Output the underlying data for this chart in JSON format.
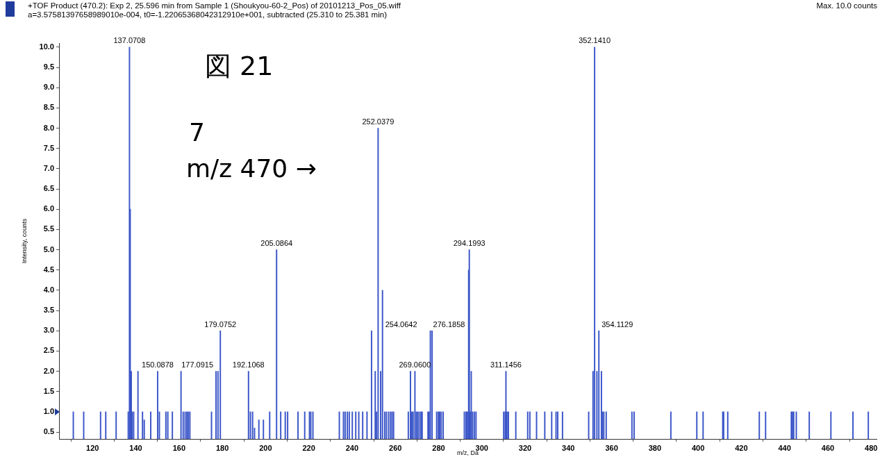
{
  "chart_data": {
    "type": "bar",
    "title": "+TOF Product (470.2): Exp 2, 25.596 min from Sample 1 (Shoukyou-60-2_Pos) of 20101213_Pos_05.wiff",
    "subtitle": "a=3.57581397658989010e-004, t0=-1.22065368042312910e+001, subtracted (25.310 to 25.381 min)",
    "xlabel": "m/z, Da",
    "ylabel": "Intensity, counts",
    "color": "#3a55c8",
    "x": [
      111.1,
      115.9,
      123.7,
      126.1,
      130.9,
      136.5,
      137.0708,
      137.4,
      137.9,
      138.3,
      139.0,
      141.0,
      143.1,
      143.9,
      146.9,
      150.0878,
      150.9,
      153.9,
      154.8,
      156.9,
      160.9,
      161.9,
      162.8,
      163.6,
      164.3,
      165.0,
      175.0,
      177.0915,
      178.0,
      179.0752,
      192.1068,
      193.0,
      194.0,
      194.9,
      196.9,
      199.0,
      201.9,
      205.0864,
      207.0,
      209.1,
      210.2,
      215.0,
      218.1,
      220.3,
      220.9,
      221.9,
      234.1,
      236.0,
      236.8,
      237.8,
      238.7,
      240.1,
      241.7,
      243.1,
      244.9,
      246.9,
      249.0,
      250.7,
      251.3,
      252.0379,
      253.2,
      254.0642,
      255.1,
      255.9,
      256.9,
      257.8,
      258.5,
      259.2,
      266.0,
      267.0,
      267.6,
      268.2,
      269.06,
      269.7,
      270.3,
      271.0,
      271.8,
      272.4,
      275.1,
      275.6,
      276.1858,
      277.0,
      279.1,
      279.9,
      280.5,
      281.2,
      282.1,
      291.9,
      292.7,
      293.3,
      293.9,
      294.1993,
      294.6,
      295.1,
      295.7,
      296.5,
      297.3,
      310.1,
      310.8,
      311.1456,
      311.6,
      312.3,
      315.7,
      321.2,
      322.2,
      325.3,
      329.1,
      332.3,
      334.3,
      335.1,
      337.3,
      349.4,
      351.4,
      352.141,
      353.2,
      354.1129,
      355.3,
      355.8,
      356.4,
      357.5,
      369.4,
      370.4,
      387.4,
      399.4,
      402.3,
      411.4,
      411.8,
      413.7,
      428.3,
      431.2,
      443.1,
      443.6,
      444.2,
      445.4,
      451.4,
      461.4,
      471.6,
      478.7
    ],
    "values": [
      1,
      1,
      1,
      1,
      1,
      1,
      10,
      6,
      2,
      1,
      1,
      2,
      1,
      0.8,
      1,
      2,
      1,
      1,
      1,
      1,
      2,
      1,
      1,
      1,
      1,
      1,
      1,
      2,
      2,
      3,
      2,
      1,
      1,
      0.6,
      0.8,
      0.8,
      1,
      5,
      1,
      1,
      1,
      1,
      1,
      1,
      1,
      1,
      1,
      1,
      1,
      1,
      1,
      1,
      1,
      1,
      1,
      1,
      3,
      2,
      1,
      8,
      2,
      4,
      1,
      1,
      1,
      1,
      1,
      1,
      1,
      2,
      1,
      1,
      2,
      1,
      1,
      1,
      1,
      1,
      1,
      1,
      3,
      3,
      1,
      1,
      1,
      1,
      1,
      1,
      1,
      1,
      4.5,
      5,
      1,
      2,
      1,
      1,
      1,
      1,
      1,
      2,
      1,
      1,
      1,
      1,
      1,
      1,
      1,
      1,
      1,
      1,
      1,
      1,
      2,
      10,
      2,
      3,
      2,
      1,
      1,
      1,
      1,
      1,
      1,
      1,
      1,
      1,
      1,
      1,
      1,
      1,
      1,
      1,
      1,
      1,
      1,
      1,
      1,
      1
    ],
    "xlim": [
      104.5,
      482.5
    ],
    "xticks": [
      120,
      140,
      160,
      180,
      200,
      220,
      240,
      260,
      280,
      300,
      320,
      340,
      360,
      380,
      400,
      420,
      440,
      460,
      480
    ],
    "ylim": [
      0.33,
      10.1
    ],
    "yticks": [
      {
        "value": 0.5,
        "label": "0.5"
      },
      {
        "value": 1,
        "label": "1.0"
      },
      {
        "value": 1.5,
        "label": "1.5"
      },
      {
        "value": 2,
        "label": "2.0"
      },
      {
        "value": 2.5,
        "label": "2.5"
      },
      {
        "value": 3,
        "label": "3.0"
      },
      {
        "value": 3.5,
        "label": "3.5"
      },
      {
        "value": 4,
        "label": "4.0"
      },
      {
        "value": 4.5,
        "label": "4.5"
      },
      {
        "value": 5,
        "label": "5.0"
      },
      {
        "value": 5.5,
        "label": "5.5"
      },
      {
        "value": 6,
        "label": "6.0"
      },
      {
        "value": 6.5,
        "label": "6.5"
      },
      {
        "value": 7,
        "label": "7.0"
      },
      {
        "value": 7.5,
        "label": "7.5"
      },
      {
        "value": 8,
        "label": "8.0"
      },
      {
        "value": 8.5,
        "label": "8.5"
      },
      {
        "value": 9,
        "label": "9.0"
      },
      {
        "value": 9.5,
        "label": "9.5"
      },
      {
        "value": 10,
        "label": "10.0"
      }
    ],
    "annotations": [
      {
        "text": "137.0708",
        "x": 137.0708,
        "y": 10
      },
      {
        "text": "352.1410",
        "x": 352.141,
        "y": 10
      },
      {
        "text": "252.0379",
        "x": 252.0379,
        "y": 8
      },
      {
        "text": "205.0864",
        "x": 205.0864,
        "y": 5
      },
      {
        "text": "294.1993",
        "x": 294.1993,
        "y": 5
      },
      {
        "text": "179.0752",
        "x": 179.0752,
        "y": 3
      },
      {
        "text": "254.0642",
        "x": 254.0642,
        "y": 3
      },
      {
        "text": "276.1858",
        "x": 276.1858,
        "y": 3
      },
      {
        "text": "354.1129",
        "x": 354.1129,
        "y": 3
      },
      {
        "text": "150.0878",
        "x": 150.0878,
        "y": 2
      },
      {
        "text": "177.0915",
        "x": 177.0915,
        "y": 2
      },
      {
        "text": "192.1068",
        "x": 192.1068,
        "y": 2
      },
      {
        "text": "269.0600",
        "x": 269.06,
        "y": 2
      },
      {
        "text": "311.1456",
        "x": 311.1456,
        "y": 2
      },
      "図 21",
      "7",
      "m/z 470 →",
      "Max. 10.0 counts"
    ]
  }
}
